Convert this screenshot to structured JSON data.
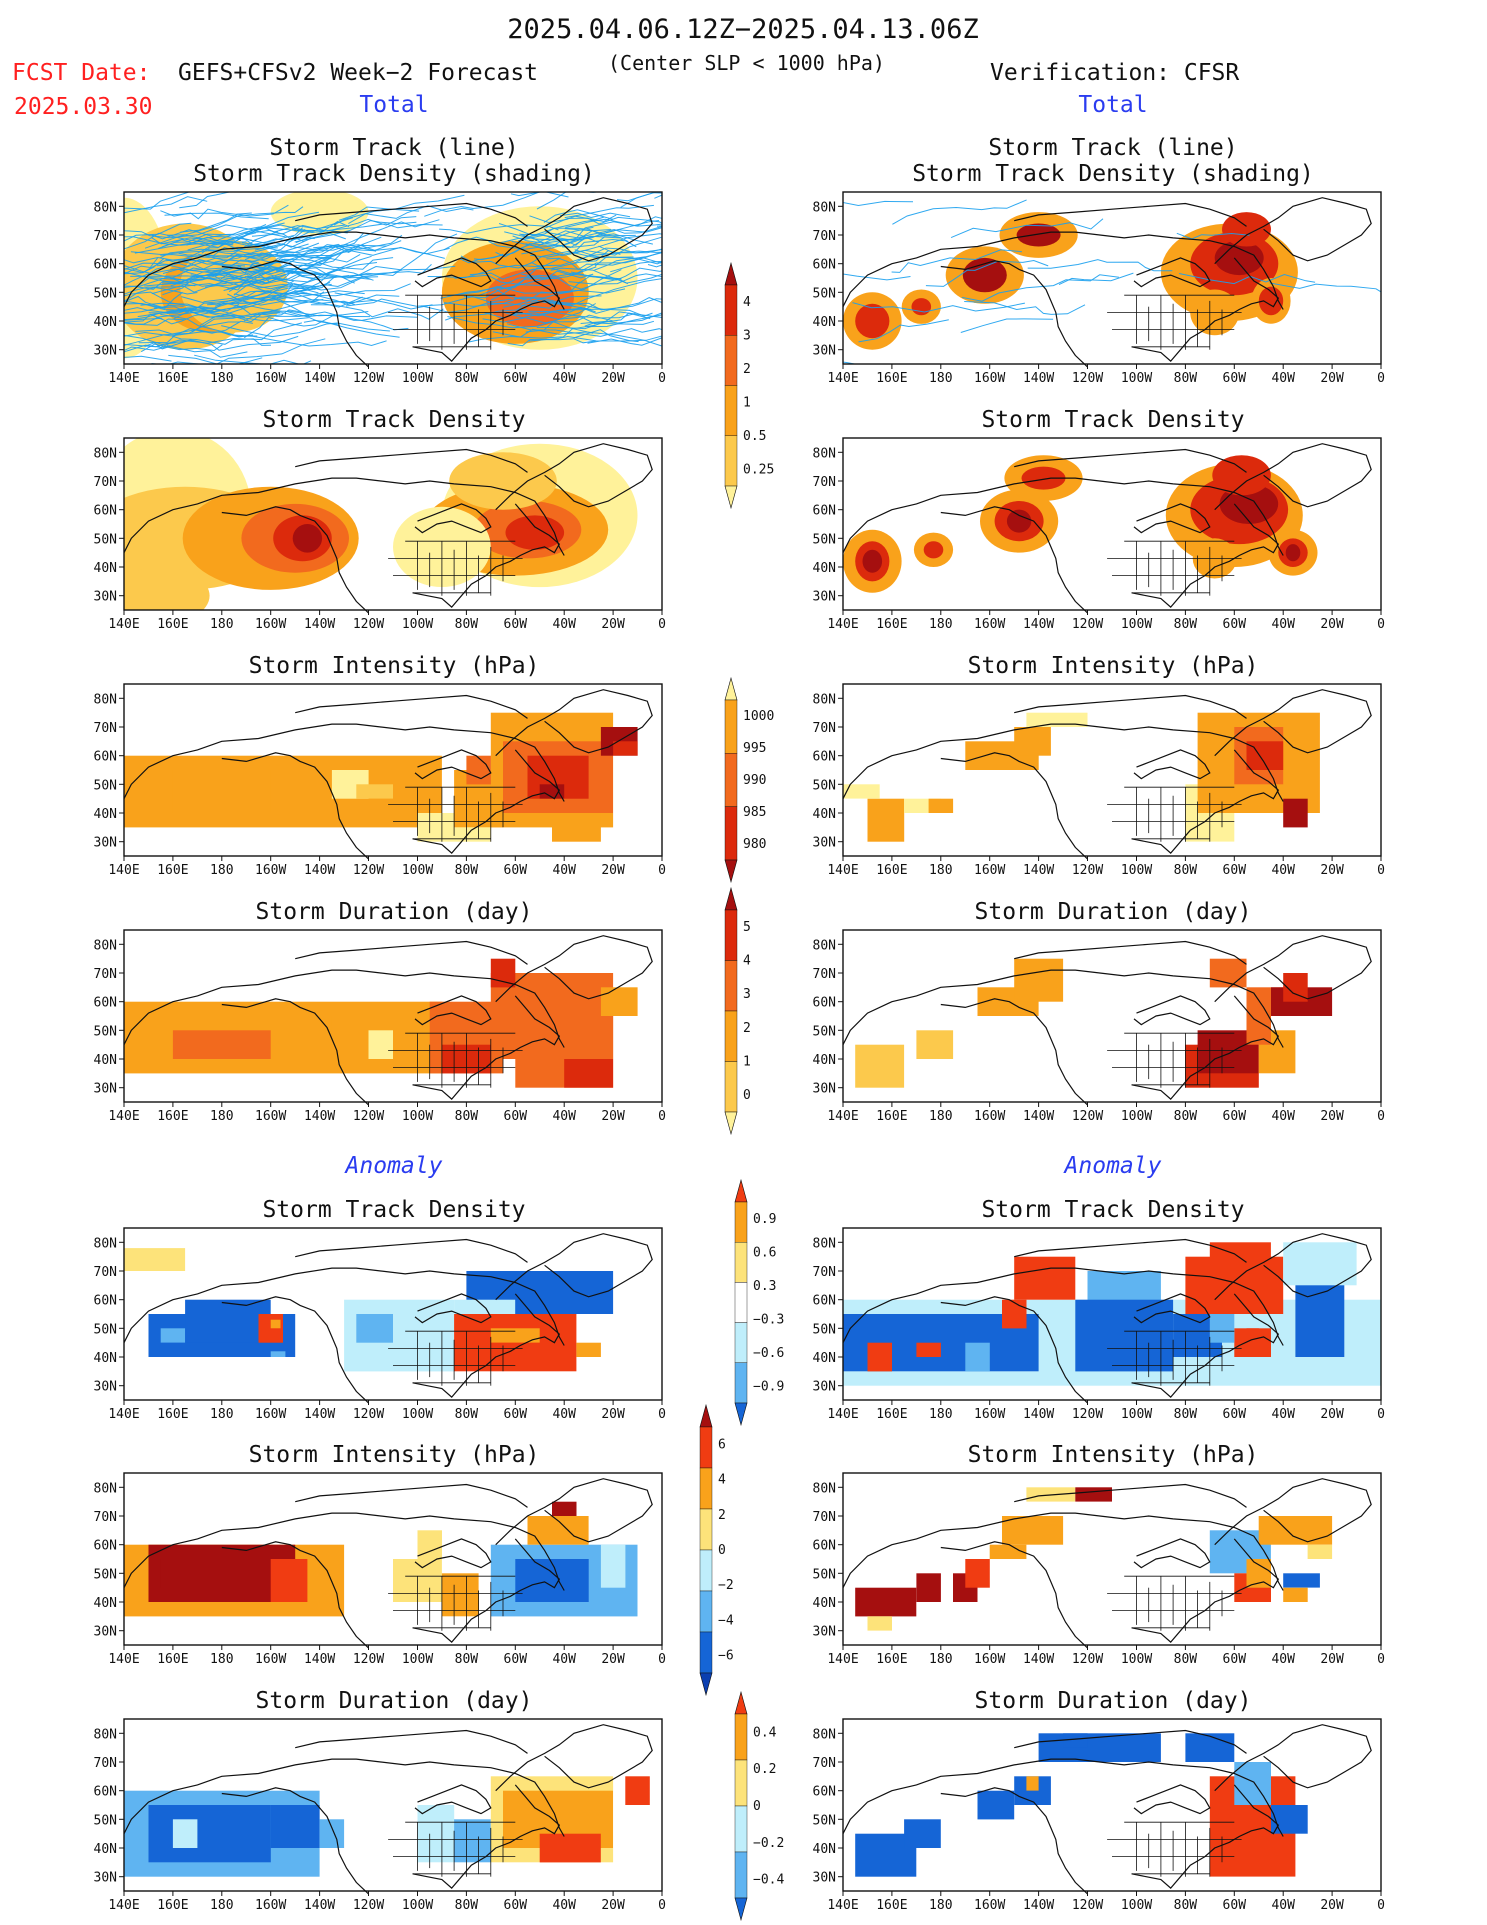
{
  "header": {
    "date_range": "2025.04.06.12Z−2025.04.13.06Z",
    "fcst_label": "FCST Date:",
    "fcst_date": "2025.03.30",
    "model": "GEFS+CFSv2 Week−2 Forecast",
    "criterion": "(Center SLP < 1000 hPa)",
    "verification": "Verification: CFSR"
  },
  "sections": {
    "total": "Total",
    "anomaly": "Anomaly"
  },
  "panel_titles": {
    "track_line": "Storm Track (line)",
    "track_shading": "Storm Track Density (shading)",
    "density": "Storm Track Density",
    "intensity": "Storm Intensity (hPa)",
    "duration": "Storm Duration (day)"
  },
  "axes": {
    "lon_ticks": [
      "140E",
      "160E",
      "180",
      "160W",
      "140W",
      "120W",
      "100W",
      "80W",
      "60W",
      "40W",
      "20W",
      "0"
    ],
    "lat_ticks": [
      "80N",
      "70N",
      "60N",
      "50N",
      "40N",
      "30N"
    ]
  },
  "colorbars": [
    {
      "id": "total-density",
      "type": "sequential",
      "labels": [
        "4",
        "3",
        "2",
        "1",
        "0.5",
        "0.25"
      ],
      "colors": [
        "#a50f0f",
        "#dc2a0c",
        "#f26a1e",
        "#f9a21b",
        "#fcc94c",
        "#fff29a"
      ]
    },
    {
      "id": "total-intensity",
      "type": "sequential",
      "labels": [
        "1000",
        "995",
        "990",
        "985",
        "980"
      ],
      "colors": [
        "#fff29a",
        "#f9a21b",
        "#f26a1e",
        "#dc2a0c",
        "#a50f0f"
      ]
    },
    {
      "id": "total-duration",
      "type": "sequential",
      "labels": [
        "5",
        "4",
        "3",
        "2",
        "1",
        "0"
      ],
      "colors": [
        "#a50f0f",
        "#dc2a0c",
        "#f26a1e",
        "#f9a21b",
        "#fcc94c",
        "#fff29a"
      ]
    },
    {
      "id": "anom-density",
      "type": "diverging",
      "labels": [
        "0.9",
        "0.6",
        "0.3",
        "−0.3",
        "−0.6",
        "−0.9"
      ],
      "colors": [
        "#f03c12",
        "#f9a21b",
        "#fde37a",
        "#ffffff",
        "#bfeefb",
        "#5fb4f1",
        "#1565d6"
      ]
    },
    {
      "id": "anom-intensity",
      "type": "diverging",
      "labels": [
        "6",
        "4",
        "2",
        "0",
        "−2",
        "−4",
        "−6"
      ],
      "colors": [
        "#a50f0f",
        "#f03c12",
        "#f9a21b",
        "#fde37a",
        "#bfeefb",
        "#5fb4f1",
        "#1565d6",
        "#0b3fb0"
      ]
    },
    {
      "id": "anom-duration",
      "type": "diverging",
      "labels": [
        "0.4",
        "0.2",
        "0",
        "−0.2",
        "−0.4"
      ],
      "colors": [
        "#f03c12",
        "#f9a21b",
        "#fde37a",
        "#bfeefb",
        "#5fb4f1",
        "#1565d6"
      ]
    }
  ],
  "colors": {
    "title_red": "#ff2020",
    "section_blue": "#2a3cf0",
    "track_line": "#1aa0ee",
    "scale_yellow": "#fff29a",
    "scale_lightorange": "#fcc94c",
    "scale_orange": "#f9a21b",
    "scale_darkorange": "#f26a1e",
    "scale_red": "#dc2a0c",
    "scale_darkred": "#a50f0f",
    "anom_pos1": "#fde37a",
    "anom_pos2": "#f9a21b",
    "anom_pos3": "#f03c12",
    "anom_neg1": "#bfeefb",
    "anom_neg2": "#5fb4f1",
    "anom_neg3": "#1565d6"
  }
}
